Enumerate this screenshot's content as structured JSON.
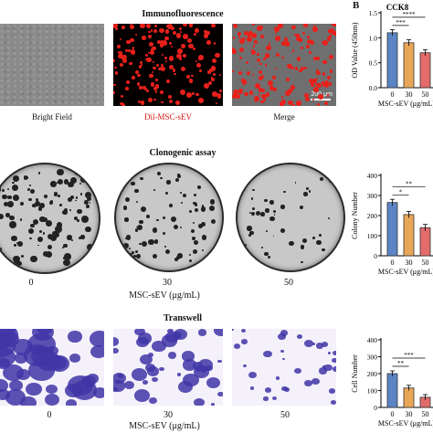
{
  "panel_b_letter": "B",
  "immunofluorescence": {
    "title": "Immunofluorescence",
    "captions": [
      "Bright Field",
      "Dil-MSC-sEV",
      "Merge"
    ],
    "scale_bar": "200 μm"
  },
  "clonogenic": {
    "title": "Clonogenic assay",
    "doses": [
      "0",
      "30",
      "50"
    ],
    "xlabel": "MSC-sEV (μg/mL)"
  },
  "transwell": {
    "title": "Transwell",
    "doses": [
      "0",
      "30",
      "50"
    ],
    "xlabel": "MSC-sEV (μg/mL)"
  },
  "colors": {
    "bar_0": "#5b84c4",
    "bar_30": "#e8a657",
    "bar_50": "#e36b6b",
    "dil_red": "#e8201a",
    "crystal_violet": "#3f35a6"
  },
  "chart_data": [
    {
      "type": "bar",
      "title": "CCK8",
      "categories": [
        "0",
        "30",
        "50"
      ],
      "values": [
        1.1,
        0.9,
        0.7
      ],
      "ylabel": "OD Value (450nm)",
      "xlabel": "MSC-sEV (μg/mL)",
      "ylim": [
        0,
        1.5
      ],
      "yticks": [
        "0.0",
        "0.5",
        "1.0",
        "1.5"
      ],
      "significance": [
        "***",
        "****"
      ]
    },
    {
      "type": "bar",
      "categories": [
        "0",
        "30",
        "50"
      ],
      "values": [
        265,
        205,
        140
      ],
      "ylabel": "Colony Number",
      "xlabel": "MSC-sEV (μg/mL)",
      "ylim": [
        0,
        400
      ],
      "yticks": [
        "0",
        "100",
        "200",
        "300",
        "400"
      ],
      "significance": [
        "*",
        "**"
      ]
    },
    {
      "type": "bar",
      "categories": [
        "0",
        "30",
        "50"
      ],
      "values": [
        200,
        115,
        60
      ],
      "ylabel": "Cell Number",
      "xlabel": "MSC-sEV (μg/mL)",
      "ylim": [
        0,
        400
      ],
      "yticks": [
        "0",
        "100",
        "200",
        "300",
        "400"
      ],
      "significance": [
        "**",
        "***"
      ]
    }
  ]
}
